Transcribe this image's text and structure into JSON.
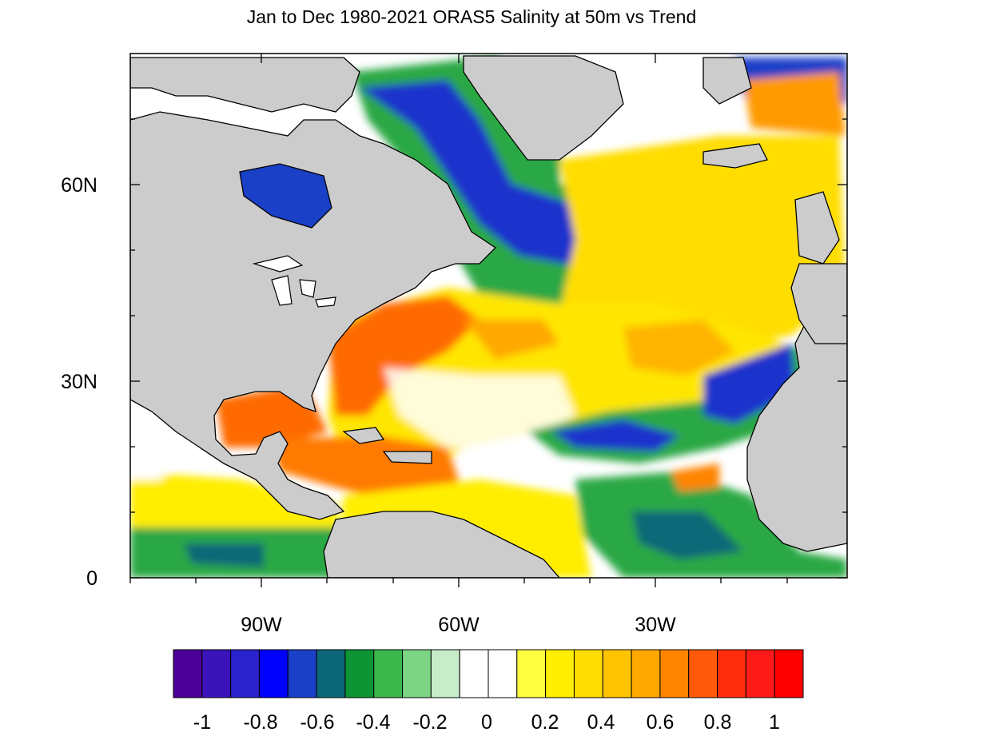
{
  "title": "Jan to Dec 1980-2021 ORAS5 Salinity at 50m vs Trend",
  "map": {
    "lon_range": [
      -110,
      0
    ],
    "lat_range": [
      0,
      80
    ],
    "y_labels": [
      "60N",
      "30N",
      "0"
    ],
    "x_labels": [
      "90W",
      "60W",
      "30W"
    ],
    "land_color": "#cccccc",
    "ocean_background": "#ffffff"
  },
  "colorbar": {
    "labels": [
      "-1",
      "-0.8",
      "-0.6",
      "-0.4",
      "-0.2",
      "0",
      "0.2",
      "0.4",
      "0.6",
      "0.8",
      "1"
    ],
    "colors": [
      "#4b0099",
      "#3a14b8",
      "#2a22cc",
      "#0000ff",
      "#1a40c8",
      "#0c6878",
      "#0d9435",
      "#3ab84a",
      "#7ed485",
      "#c8ecca",
      "#ffffff",
      "#ffffff",
      "#ffff40",
      "#ffee00",
      "#ffdd00",
      "#ffc400",
      "#ffa800",
      "#ff8400",
      "#ff5a0a",
      "#ff2c0c",
      "#ff1a1a",
      "#ff0000"
    ]
  }
}
